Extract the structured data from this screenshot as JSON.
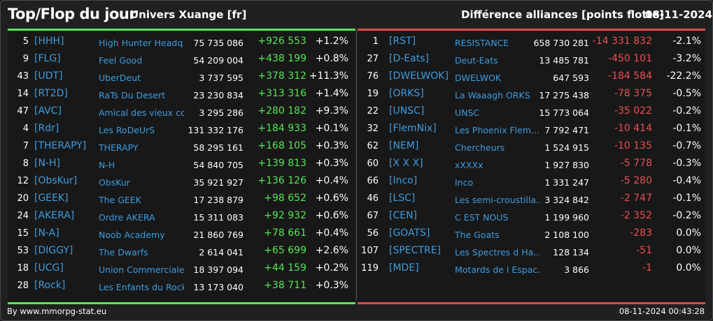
{
  "header": {
    "title": "Top/Flop du jour",
    "universe": "Univers Xuange [fr]",
    "difference_label": "Différence alliances [points flotte]",
    "date": "08-11-2024"
  },
  "colors": {
    "positive": "#55e655",
    "negative": "#ea5050",
    "link": "#3d9ce0",
    "top_bar": "#55e655",
    "flop_bar": "#dd4a4a"
  },
  "top": [
    {
      "rank": "5",
      "tag": "[HHH]",
      "name": "High Hunter Headq...",
      "points": "75 735 086",
      "diff": "+926 553",
      "pct": "+1.2%"
    },
    {
      "rank": "9",
      "tag": "[FLG]",
      "name": "Feel Good",
      "points": "54 209 004",
      "diff": "+438 199",
      "pct": "+0.8%"
    },
    {
      "rank": "43",
      "tag": "[UDT]",
      "name": "UberDeut",
      "points": "3 737 595",
      "diff": "+378 312",
      "pct": "+11.3%"
    },
    {
      "rank": "14",
      "tag": "[RT2D]",
      "name": "RaTs Du Desert",
      "points": "23 230 834",
      "diff": "+313 316",
      "pct": "+1.4%"
    },
    {
      "rank": "47",
      "tag": "[AVC]",
      "name": "Amical des vieux con",
      "points": "3 295 286",
      "diff": "+280 182",
      "pct": "+9.3%"
    },
    {
      "rank": "4",
      "tag": "[Rdr]",
      "name": "Les RoDeUrS",
      "points": "131 332 176",
      "diff": "+184 933",
      "pct": "+0.1%"
    },
    {
      "rank": "7",
      "tag": "[THERAPY]",
      "name": "THERAPY",
      "points": "58 295 161",
      "diff": "+168 105",
      "pct": "+0.3%"
    },
    {
      "rank": "8",
      "tag": "[N-H]",
      "name": "N-H",
      "points": "54 840 705",
      "diff": "+139 813",
      "pct": "+0.3%"
    },
    {
      "rank": "12",
      "tag": "[ObsKur]",
      "name": "ObsKur",
      "points": "35 921 927",
      "diff": "+136 126",
      "pct": "+0.4%"
    },
    {
      "rank": "20",
      "tag": "[GEEK]",
      "name": "The GEEK",
      "points": "17 238 879",
      "diff": "+98 652",
      "pct": "+0.6%"
    },
    {
      "rank": "24",
      "tag": "[AKERA]",
      "name": "Ordre AKERA",
      "points": "15 311 083",
      "diff": "+92 932",
      "pct": "+0.6%"
    },
    {
      "rank": "15",
      "tag": "[N-A]",
      "name": "Noob Academy",
      "points": "21 860 769",
      "diff": "+78 661",
      "pct": "+0.4%"
    },
    {
      "rank": "53",
      "tag": "[DIGGY]",
      "name": "The Dwarfs",
      "points": "2 614 041",
      "diff": "+65 699",
      "pct": "+2.6%"
    },
    {
      "rank": "18",
      "tag": "[UCG]",
      "name": "Union Commerciale...",
      "points": "18 397 094",
      "diff": "+44 159",
      "pct": "+0.2%"
    },
    {
      "rank": "28",
      "tag": "[Rock]",
      "name": "Les Enfants du Rock",
      "points": "13 173 040",
      "diff": "+38 711",
      "pct": "+0.3%"
    }
  ],
  "flop": [
    {
      "rank": "1",
      "tag": "[RST]",
      "name": "RESISTANCE",
      "points": "658 730 281",
      "diff": "-14 331 832",
      "pct": "-2.1%"
    },
    {
      "rank": "27",
      "tag": "[D-Eats]",
      "name": "Deut-Eats",
      "points": "13 485 781",
      "diff": "-450 101",
      "pct": "-3.2%"
    },
    {
      "rank": "76",
      "tag": "[DWELWOK]",
      "name": "DWELWOK",
      "points": "647 593",
      "diff": "-184 584",
      "pct": "-22.2%"
    },
    {
      "rank": "19",
      "tag": "[ORKS]",
      "name": "La Waaagh ORKS",
      "points": "17 275 438",
      "diff": "-78 375",
      "pct": "-0.5%"
    },
    {
      "rank": "22",
      "tag": "[UNSC]",
      "name": "UNSC",
      "points": "15 773 064",
      "diff": "-35 022",
      "pct": "-0.2%"
    },
    {
      "rank": "32",
      "tag": "[FlemNix]",
      "name": "Les Phoenix Flem...",
      "points": "7 792 471",
      "diff": "-10 414",
      "pct": "-0.1%"
    },
    {
      "rank": "62",
      "tag": "[NEM]",
      "name": "Chercheurs",
      "points": "1 524 915",
      "diff": "-10 135",
      "pct": "-0.7%"
    },
    {
      "rank": "60",
      "tag": "[X X X]",
      "name": "xXXXx",
      "points": "1 927 830",
      "diff": "-5 778",
      "pct": "-0.3%"
    },
    {
      "rank": "66",
      "tag": "[Inco]",
      "name": "Inco",
      "points": "1 331 247",
      "diff": "-5 280",
      "pct": "-0.4%"
    },
    {
      "rank": "46",
      "tag": "[LSC]",
      "name": "Les semi-croustilla...",
      "points": "3 324 842",
      "diff": "-2 747",
      "pct": "-0.1%"
    },
    {
      "rank": "67",
      "tag": "[CEN]",
      "name": "C EST NOUS",
      "points": "1 199 960",
      "diff": "-2 352",
      "pct": "-0.2%"
    },
    {
      "rank": "56",
      "tag": "[GOATS]",
      "name": "The Goats",
      "points": "2 108 100",
      "diff": "-283",
      "pct": "0.0%"
    },
    {
      "rank": "107",
      "tag": "[SPECTRE]",
      "name": "Les Spectres d Ha...",
      "points": "128 134",
      "diff": "-51",
      "pct": "0.0%"
    },
    {
      "rank": "119",
      "tag": "[MDE]",
      "name": "Motards de l Espac...",
      "points": "3 866",
      "diff": "-1",
      "pct": "0.0%"
    }
  ],
  "footer": {
    "credit": "By www.mmorpg-stat.eu",
    "timestamp": "08-11-2024 00:43:28"
  }
}
